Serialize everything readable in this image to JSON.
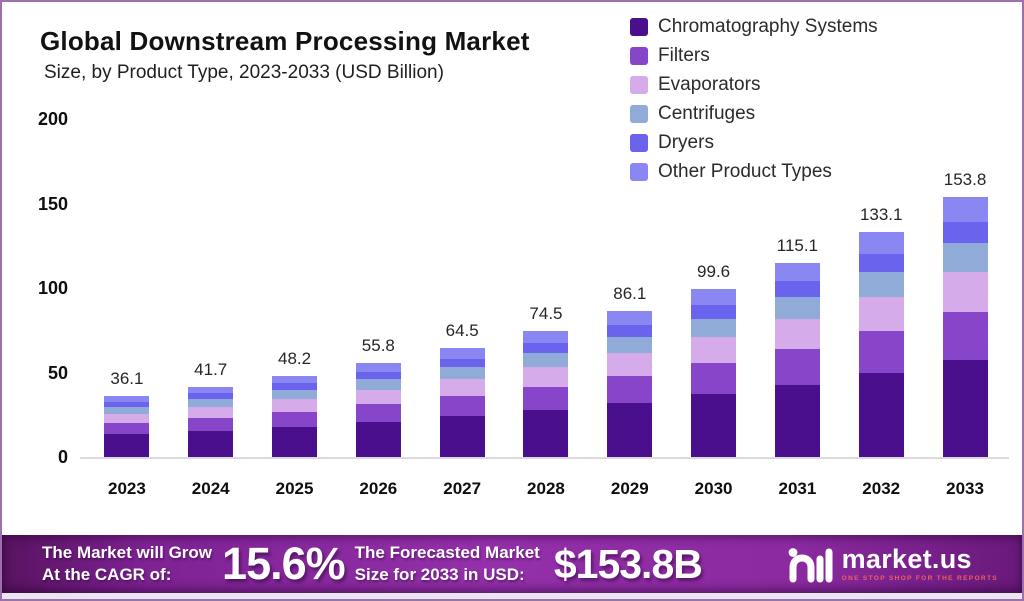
{
  "header": {
    "title": "Global Downstream Processing Market",
    "subtitle": "Size, by Product Type, 2023-2033 (USD Billion)"
  },
  "chart_data": {
    "type": "bar",
    "stacked": true,
    "title": "Global Downstream Processing Market Size, by Product Type, 2023-2033 (USD Billion)",
    "categories": [
      "2023",
      "2024",
      "2025",
      "2026",
      "2027",
      "2028",
      "2029",
      "2030",
      "2031",
      "2032",
      "2033"
    ],
    "totals": [
      36.1,
      41.7,
      48.2,
      55.8,
      64.5,
      74.5,
      86.1,
      99.6,
      115.1,
      133.1,
      153.8
    ],
    "series": [
      {
        "name": "Chromatography Systems",
        "color": "#4a0f8c",
        "values": [
          13.4,
          15.5,
          17.9,
          20.8,
          24.0,
          27.7,
          32.0,
          37.1,
          42.8,
          49.5,
          57.2
        ]
      },
      {
        "name": "Filters",
        "color": "#8745c9",
        "values": [
          6.7,
          7.8,
          9.0,
          10.4,
          12.0,
          13.9,
          16.0,
          18.5,
          21.4,
          24.8,
          28.6
        ]
      },
      {
        "name": "Evaporators",
        "color": "#d5abe9",
        "values": [
          5.6,
          6.4,
          7.4,
          8.6,
          9.9,
          11.5,
          13.3,
          15.3,
          17.7,
          20.5,
          23.7
        ]
      },
      {
        "name": "Centrifuges",
        "color": "#91abd9",
        "values": [
          4.0,
          4.6,
          5.3,
          6.1,
          7.1,
          8.2,
          9.5,
          11.0,
          12.7,
          14.6,
          16.9
        ]
      },
      {
        "name": "Dryers",
        "color": "#6a63ee",
        "values": [
          3.0,
          3.4,
          4.0,
          4.6,
          5.3,
          6.1,
          7.1,
          8.2,
          9.4,
          10.9,
          12.6
        ]
      },
      {
        "name": "Other Product Types",
        "color": "#8b87f2",
        "values": [
          3.5,
          4.0,
          4.6,
          5.4,
          6.2,
          7.2,
          8.3,
          9.6,
          11.0,
          12.8,
          14.8
        ]
      }
    ],
    "xlabel": "",
    "ylabel": "",
    "ylim": [
      0,
      200
    ],
    "yticks": [
      0,
      50,
      100,
      150,
      200
    ],
    "grid": false,
    "legend_position": "top-right"
  },
  "banner": {
    "cagr_label_line1": "The Market will Grow",
    "cagr_label_line2": "At the CAGR of:",
    "cagr_value": "15.6%",
    "forecast_label_line1": "The Forecasted Market",
    "forecast_label_line2": "Size for 2033 in USD:",
    "forecast_value": "$153.8B",
    "brand_name": "market.us",
    "brand_tagline": "ONE STOP SHOP FOR THE REPORTS"
  },
  "colors": {
    "frame_border": "#9c6fae",
    "banner_purple": "#9430aa",
    "tagline_red": "#f0605f",
    "axis_text": "#0e0e0e",
    "baseline": "#dcd8e0"
  }
}
